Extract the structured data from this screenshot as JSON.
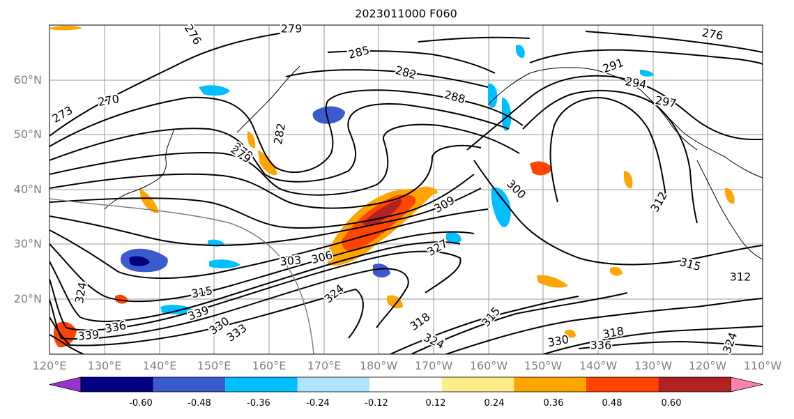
{
  "title": "2023011000 F060",
  "lat_labels": [
    "60°N",
    "50°N",
    "40°N",
    "30°N",
    "20°N"
  ],
  "lon_labels": [
    "120°E",
    "130°E",
    "140°E",
    "150°E",
    "160°E",
    "170°E",
    "180°W",
    "170°W",
    "160°W",
    "150°W",
    "140°W",
    "130°W",
    "120°W",
    "110°W"
  ],
  "colorbar": {
    "ticks": [
      "-0.60",
      "-0.48",
      "-0.36",
      "-0.24",
      "-0.12",
      "0.12",
      "0.24",
      "0.36",
      "0.48",
      "0.60"
    ],
    "colors": [
      "#9932cc",
      "#000080",
      "#3a5acd",
      "#00bfff",
      "#b0e2ff",
      "#ffffff",
      "#ffec8b",
      "#ffa500",
      "#ff4500",
      "#b22222",
      "#ff82ab"
    ]
  },
  "contour_labels": [
    "276",
    "279",
    "285",
    "282",
    "279",
    "276",
    "291",
    "294",
    "297",
    "270",
    "273",
    "282",
    "279",
    "288",
    "300",
    "309",
    "303",
    "306",
    "312",
    "315",
    "312",
    "324",
    "327",
    "315",
    "318",
    "336",
    "339",
    "330",
    "333",
    "324",
    "318",
    "315",
    "324",
    "330",
    "336",
    "339",
    "324"
  ]
}
